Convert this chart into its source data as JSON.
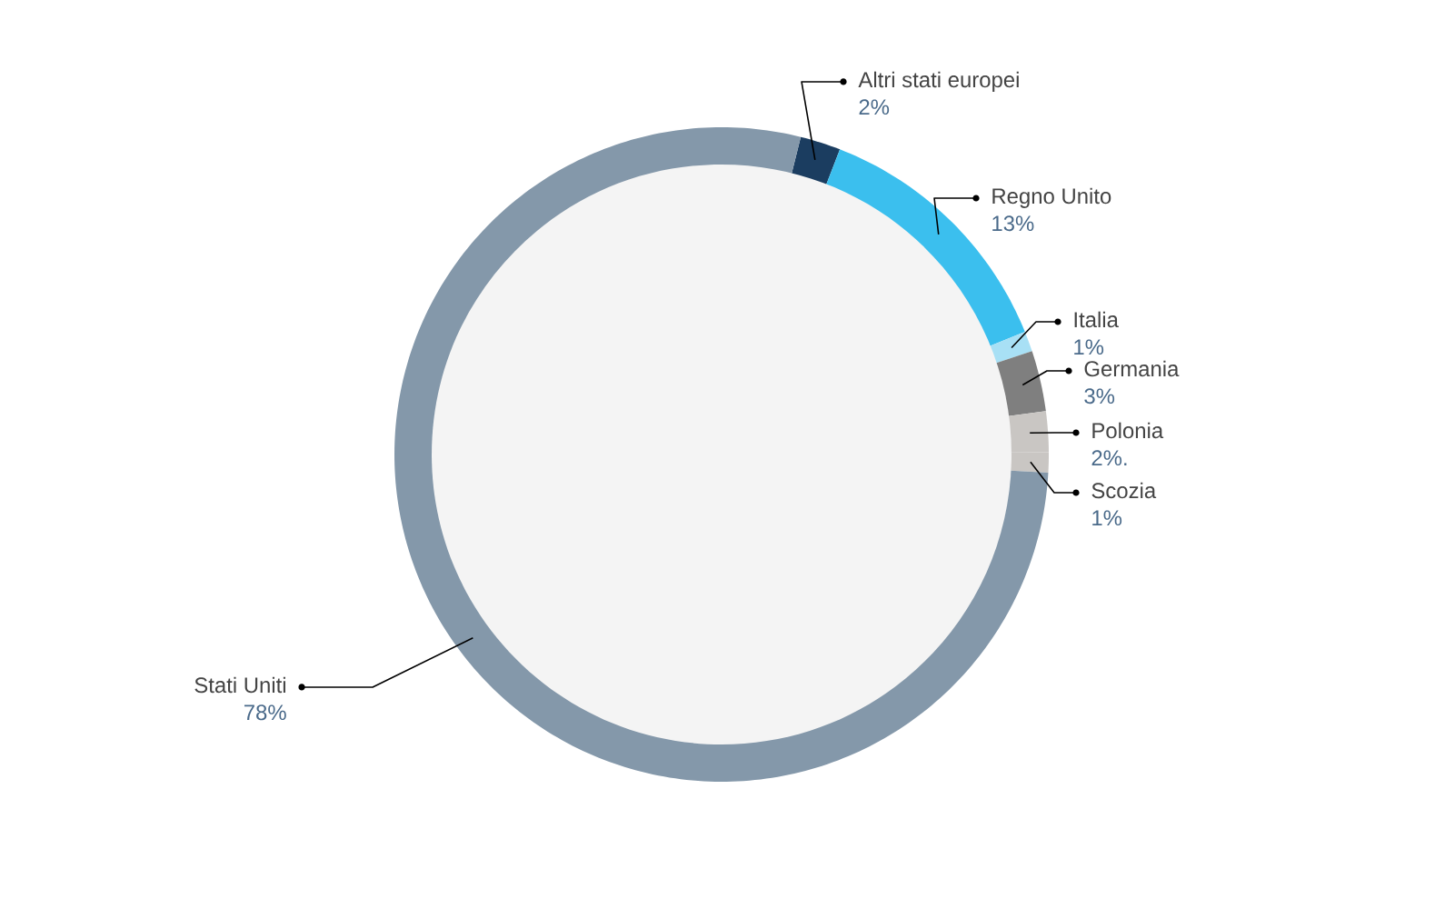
{
  "chart_data": {
    "type": "donut",
    "categories": [
      "Altri stati europei",
      "Regno Unito",
      "Italia",
      "Germania",
      "Polonia",
      "Scozia",
      "Stati Uniti"
    ],
    "values": [
      2,
      13,
      1,
      3,
      2,
      1,
      78
    ],
    "value_labels": [
      "2%",
      "13%",
      "1%",
      "3%",
      "2%.",
      "1%",
      "78%"
    ],
    "colors": [
      "#1b3d60",
      "#3bbfee",
      "#a8e0f5",
      "#7f7f7f",
      "#c9c6c3",
      "#c9c6c3",
      "#8498aa"
    ]
  }
}
